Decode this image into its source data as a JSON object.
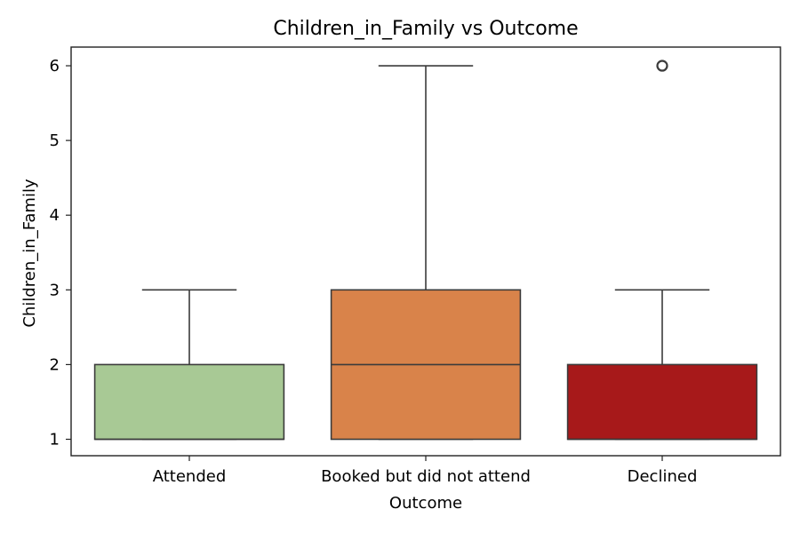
{
  "chart_data": {
    "type": "box",
    "title": "Children_in_Family vs Outcome",
    "xlabel": "Outcome",
    "ylabel": "Children_in_Family",
    "ylim": [
      0.78,
      6.25
    ],
    "yticks": [
      1,
      2,
      3,
      4,
      5,
      6
    ],
    "grid": false,
    "categories": [
      "Attended",
      "Booked but did not attend",
      "Declined"
    ],
    "boxes": [
      {
        "category": "Attended",
        "whisker_low": 1,
        "q1": 1,
        "median": 1,
        "q3": 2,
        "whisker_high": 3,
        "outliers": [],
        "color": "#a8c995"
      },
      {
        "category": "Booked but did not attend",
        "whisker_low": 1,
        "q1": 1,
        "median": 2,
        "q3": 3,
        "whisker_high": 6,
        "outliers": [],
        "color": "#d9834a"
      },
      {
        "category": "Declined",
        "whisker_low": 1,
        "q1": 1,
        "median": 1,
        "q3": 2,
        "whisker_high": 3,
        "outliers": [
          6
        ],
        "color": "#a7191a"
      }
    ]
  }
}
